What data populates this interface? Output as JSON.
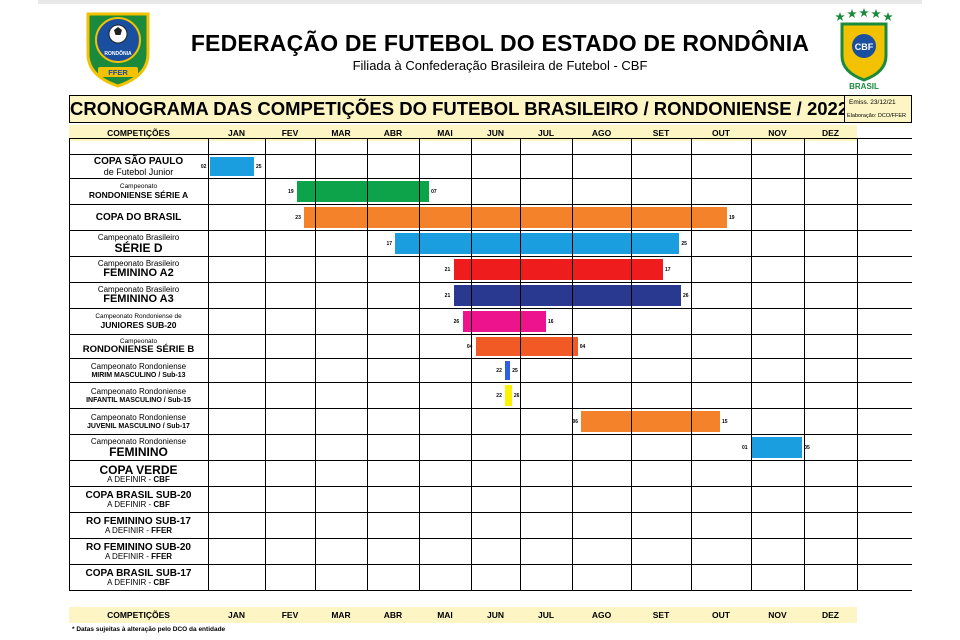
{
  "header": {
    "title": "FEDERAÇÃO DE FUTEBOL DO ESTADO DE RONDÔNIA",
    "subtitle": "Filiada à Confederação Brasileira de Futebol - CBF",
    "left_logo": {
      "ring_text": "FEDERAÇÃO DE FUTEBOL DO ESTADO DE",
      "name": "RONDÔNIA",
      "acronym": "FFER"
    },
    "right_logo": {
      "acronym": "CBF",
      "country": "BRASIL"
    }
  },
  "schedule": {
    "title": "CRONOGRAMA DAS COMPETIÇÕES DO FUTEBOL BRASILEIRO / RONDONIENSE / 2022",
    "emission": "Emiss. 23/12/21",
    "prepared_by": "Elaboração: DCO/FFER",
    "column_header": "COMPETIÇÕES",
    "months": [
      "JAN",
      "FEV",
      "MAR",
      "ABR",
      "MAI",
      "JUN",
      "JUL",
      "AGO",
      "SET",
      "OUT",
      "NOV",
      "DEZ"
    ],
    "rows": [
      {
        "lines": [
          [
            "COPA SÃO PAULO",
            10,
            true
          ],
          [
            "de Futebol Junior",
            9,
            false
          ]
        ],
        "color": "#1a9ee0",
        "start": "02",
        "end": "25",
        "s": 1.033,
        "e": 1.806
      },
      {
        "lines": [
          [
            "Campeonato",
            6.5,
            false
          ],
          [
            "RONDONIENSE SÉRIE A",
            8.5,
            true
          ]
        ],
        "color": "#0ca34a",
        "start": "19",
        "end": "07",
        "s": 2.643,
        "e": 5.194
      },
      {
        "lines": [
          [
            "COPA DO BRASIL",
            10,
            true
          ]
        ],
        "color": "#f4822a",
        "start": "23",
        "end": "19",
        "s": 2.786,
        "e": 10.6
      },
      {
        "lines": [
          [
            "Campeonato Brasileiro",
            8,
            false
          ],
          [
            "SÉRIE D",
            12,
            true
          ]
        ],
        "color": "#1a9ee0",
        "start": "17",
        "end": "25",
        "s": 4.548,
        "e": 9.806
      },
      {
        "lines": [
          [
            "Campeonato Brasileiro",
            8,
            false
          ],
          [
            "FEMININO A2",
            11,
            true
          ]
        ],
        "color": "#ee1c1c",
        "start": "21",
        "end": "17",
        "s": 5.667,
        "e": 9.533
      },
      {
        "lines": [
          [
            "Campeonato Brasileiro",
            8,
            false
          ],
          [
            "FEMININO A3",
            11,
            true
          ]
        ],
        "color": "#2a3990",
        "start": "21",
        "end": "26",
        "s": 5.667,
        "e": 9.833
      },
      {
        "lines": [
          [
            "Campeonato Rondoniense de",
            6.5,
            false
          ],
          [
            "JUNIORES SUB-20",
            8.5,
            true
          ]
        ],
        "color": "#ec138d",
        "start": "26",
        "end": "16",
        "s": 5.839,
        "e": 7.5
      },
      {
        "lines": [
          [
            "Campeonato",
            6.5,
            false
          ],
          [
            "RONDONIENSE SÉRIE B",
            9.5,
            true
          ]
        ],
        "color": "#f15a24",
        "start": "04",
        "end": "04",
        "s": 6.1,
        "e": 8.097
      },
      {
        "lines": [
          [
            "Campeonato Rondoniense",
            8,
            false
          ],
          [
            "MIRIM MASCULINO / Sub-13",
            7,
            true
          ]
        ],
        "color": "#2e5fe0",
        "start": "22",
        "end": "25",
        "s": 6.7,
        "e": 6.8
      },
      {
        "lines": [
          [
            "Campeonato Rondoniense",
            8,
            false
          ],
          [
            "INFANTIL MASCULINO / Sub-15",
            7,
            true
          ]
        ],
        "color": "#fef200",
        "start": "22",
        "end": "26",
        "s": 6.7,
        "e": 6.833
      },
      {
        "lines": [
          [
            "Campeonato Rondoniense",
            8,
            false
          ],
          [
            "JUVENIL MASCULINO / Sub-17",
            7,
            true
          ]
        ],
        "color": "#f4822a",
        "start": "06",
        "end": "15",
        "s": 8.161,
        "e": 10.484
      },
      {
        "lines": [
          [
            "Campeonato Rondoniense",
            8,
            false
          ],
          [
            "FEMININO",
            12,
            true
          ]
        ],
        "color": "#1a9ee0",
        "start": "01",
        "end": "05",
        "s": 11.0,
        "e": 11.967
      },
      {
        "lines": [
          [
            "COPA VERDE",
            12,
            true
          ],
          [
            "A DEFINIR - ",
            8,
            false,
            "CBF"
          ]
        ]
      },
      {
        "lines": [
          [
            "COPA BRASIL SUB-20",
            10,
            true
          ],
          [
            "A DEFINIR - ",
            8,
            false,
            "CBF"
          ]
        ]
      },
      {
        "lines": [
          [
            "RO FEMININO SUB-17",
            10,
            true
          ],
          [
            "A DEFINIR - ",
            8,
            false,
            "FFER"
          ]
        ]
      },
      {
        "lines": [
          [
            "RO FEMININO SUB-20",
            10,
            true
          ],
          [
            "A DEFINIR - ",
            8,
            false,
            "FFER"
          ]
        ]
      },
      {
        "lines": [
          [
            "COPA BRASIL SUB-17",
            10,
            true
          ],
          [
            "A DEFINIR - ",
            8,
            false,
            "CBF"
          ]
        ]
      }
    ]
  },
  "footnote": "* Datas sujeitas à alteração pelo DCO da entidade"
}
